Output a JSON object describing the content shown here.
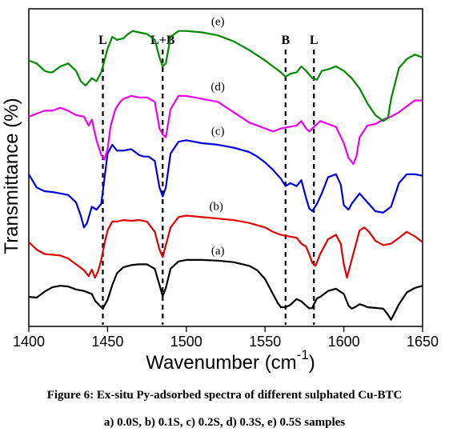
{
  "chart_data": {
    "type": "line",
    "xlabel": "Wavenumber (cm",
    "xlabel_sup": "-1",
    "xlabel_end": ")",
    "ylabel": "Transmittance (%)",
    "xlim": [
      1400,
      1650
    ],
    "xticks": [
      1400,
      1450,
      1500,
      1550,
      1600,
      1650
    ],
    "yticks": [],
    "grid": false,
    "legend": "none",
    "markers": [
      {
        "label": "L",
        "x": 1447
      },
      {
        "label": "L+B",
        "x": 1485
      },
      {
        "label": "B",
        "x": 1563
      },
      {
        "label": "L",
        "x": 1581
      }
    ],
    "series": [
      {
        "tag": "(a)",
        "tag_x": 1520,
        "color": "#000000",
        "x": [
          1400,
          1405,
          1410,
          1415,
          1420,
          1425,
          1430,
          1435,
          1440,
          1442,
          1445,
          1447,
          1450,
          1453,
          1456,
          1460,
          1465,
          1470,
          1475,
          1480,
          1483,
          1485,
          1487,
          1490,
          1495,
          1500,
          1510,
          1520,
          1530,
          1540,
          1545,
          1550,
          1555,
          1558,
          1560,
          1563,
          1566,
          1568,
          1570,
          1573,
          1576,
          1578,
          1580,
          1581,
          1583,
          1585,
          1590,
          1595,
          1600,
          1603,
          1605,
          1607,
          1610,
          1613,
          1615,
          1620,
          1625,
          1628,
          1630,
          1635,
          1640,
          1645,
          1650
        ],
        "y": [
          1.0,
          0.95,
          1.35,
          1.65,
          1.75,
          1.7,
          1.5,
          1.4,
          1.2,
          0.75,
          0.4,
          0.2,
          0.8,
          1.8,
          2.6,
          3.0,
          3.15,
          3.2,
          3.2,
          2.9,
          1.8,
          1.05,
          1.6,
          2.9,
          3.4,
          3.5,
          3.5,
          3.45,
          3.35,
          3.1,
          2.8,
          2.2,
          1.2,
          0.6,
          0.3,
          0.3,
          0.45,
          0.65,
          0.85,
          0.7,
          0.4,
          0.22,
          0.25,
          0.5,
          0.9,
          1.0,
          1.4,
          1.55,
          1.2,
          0.4,
          0.2,
          0.3,
          0.5,
          0.4,
          0.3,
          0.25,
          0.2,
          -0.2,
          -0.55,
          0.5,
          1.3,
          1.6,
          1.75
        ]
      },
      {
        "tag": "(b)",
        "tag_x": 1519,
        "color": "#e00000",
        "x": [
          1400,
          1405,
          1410,
          1415,
          1420,
          1425,
          1430,
          1435,
          1438,
          1440,
          1442,
          1444,
          1446,
          1448,
          1450,
          1453,
          1456,
          1460,
          1465,
          1470,
          1475,
          1480,
          1483,
          1485,
          1487,
          1490,
          1495,
          1500,
          1510,
          1520,
          1530,
          1540,
          1550,
          1555,
          1560,
          1565,
          1570,
          1573,
          1576,
          1578,
          1580,
          1582,
          1585,
          1590,
          1595,
          1598,
          1600,
          1602,
          1605,
          1610,
          1613,
          1616,
          1620,
          1625,
          1630,
          1635,
          1640,
          1645,
          1650
        ],
        "y": [
          4.7,
          4.2,
          3.9,
          3.85,
          3.8,
          3.6,
          3.2,
          2.8,
          2.4,
          2.85,
          2.3,
          2.75,
          3.5,
          4.6,
          5.5,
          6.1,
          6.1,
          6.2,
          6.15,
          6.2,
          6.1,
          5.4,
          4.2,
          3.7,
          4.5,
          5.7,
          6.4,
          6.5,
          6.4,
          6.3,
          6.2,
          6.0,
          5.7,
          5.4,
          5.2,
          5.1,
          5.0,
          4.6,
          4.4,
          3.9,
          3.3,
          3.1,
          3.9,
          4.9,
          5.2,
          4.6,
          3.2,
          2.3,
          3.5,
          5.5,
          5.7,
          5.4,
          4.8,
          4.5,
          4.6,
          5.0,
          5.4,
          5.1,
          4.7
        ]
      },
      {
        "tag": "(c)",
        "tag_x": 1520,
        "color": "#0000dd",
        "x": [
          1400,
          1405,
          1410,
          1415,
          1420,
          1425,
          1430,
          1433,
          1435,
          1437,
          1440,
          1443,
          1446,
          1448,
          1450,
          1453,
          1456,
          1460,
          1465,
          1470,
          1473,
          1476,
          1480,
          1483,
          1485,
          1487,
          1490,
          1495,
          1500,
          1510,
          1520,
          1530,
          1540,
          1545,
          1550,
          1555,
          1560,
          1563,
          1566,
          1570,
          1573,
          1576,
          1578,
          1580,
          1583,
          1586,
          1590,
          1595,
          1598,
          1600,
          1603,
          1605,
          1610,
          1615,
          1620,
          1625,
          1630,
          1635,
          1640,
          1645,
          1650
        ],
        "y": [
          9.3,
          8.4,
          8.15,
          8.1,
          8.0,
          7.9,
          7.4,
          6.5,
          5.7,
          6.0,
          7.1,
          6.9,
          7.3,
          9.0,
          10.7,
          11.3,
          10.9,
          10.9,
          11.0,
          10.6,
          10.5,
          10.5,
          10.2,
          8.4,
          7.8,
          8.4,
          10.7,
          11.5,
          11.6,
          11.4,
          11.3,
          11.1,
          10.8,
          10.5,
          10.1,
          9.6,
          9.0,
          8.5,
          8.7,
          8.5,
          8.9,
          7.7,
          7.0,
          6.8,
          7.3,
          8.0,
          9.1,
          9.3,
          8.6,
          7.2,
          6.9,
          7.3,
          8.0,
          7.4,
          6.8,
          6.7,
          7.1,
          8.7,
          9.3,
          9.3,
          9.2
        ]
      },
      {
        "tag": "(d)",
        "tag_x": 1520,
        "color": "#ee00ee",
        "x": [
          1400,
          1405,
          1410,
          1415,
          1420,
          1425,
          1430,
          1435,
          1438,
          1440,
          1443,
          1446,
          1448,
          1450,
          1452,
          1455,
          1458,
          1460,
          1465,
          1470,
          1475,
          1480,
          1483,
          1485,
          1487,
          1490,
          1495,
          1500,
          1510,
          1520,
          1530,
          1540,
          1550,
          1555,
          1560,
          1565,
          1570,
          1573,
          1576,
          1578,
          1580,
          1585,
          1590,
          1595,
          1600,
          1603,
          1606,
          1608,
          1610,
          1615,
          1620,
          1625,
          1630,
          1635,
          1640,
          1645,
          1650
        ],
        "y": [
          13.2,
          13.4,
          13.6,
          13.6,
          13.8,
          13.6,
          13.3,
          13.2,
          12.6,
          13.0,
          11.6,
          10.6,
          10.3,
          11.0,
          12.6,
          13.7,
          14.2,
          14.4,
          14.6,
          14.5,
          14.5,
          14.2,
          12.4,
          12.0,
          11.8,
          13.7,
          14.6,
          14.6,
          14.4,
          14.2,
          13.5,
          12.8,
          12.4,
          12.2,
          12.4,
          12.5,
          12.6,
          12.9,
          12.4,
          12.2,
          12.4,
          12.9,
          12.7,
          12.5,
          11.4,
          10.4,
          10.0,
          10.5,
          11.8,
          12.6,
          12.7,
          13.0,
          13.2,
          13.5,
          13.9,
          14.3,
          14.3
        ]
      },
      {
        "tag": "(e)",
        "tag_x": 1520,
        "color": "#008800",
        "x": [
          1400,
          1405,
          1410,
          1413,
          1415,
          1420,
          1425,
          1430,
          1433,
          1436,
          1440,
          1443,
          1446,
          1448,
          1450,
          1453,
          1456,
          1460,
          1463,
          1466,
          1470,
          1475,
          1480,
          1483,
          1485,
          1487,
          1490,
          1495,
          1500,
          1510,
          1520,
          1530,
          1540,
          1550,
          1555,
          1560,
          1563,
          1566,
          1570,
          1573,
          1576,
          1580,
          1583,
          1586,
          1590,
          1595,
          1600,
          1605,
          1610,
          1615,
          1620,
          1625,
          1628,
          1630,
          1635,
          1640,
          1645,
          1650
        ],
        "y": [
          17.0,
          16.8,
          16.3,
          16.2,
          16.2,
          16.6,
          16.8,
          16.3,
          15.6,
          15.3,
          15.8,
          15.6,
          16.2,
          17.0,
          17.8,
          18.6,
          18.4,
          18.5,
          18.8,
          19.0,
          18.9,
          18.8,
          18.4,
          17.2,
          16.6,
          16.8,
          18.6,
          19.0,
          19.0,
          18.9,
          18.7,
          18.3,
          17.7,
          17.0,
          16.6,
          16.2,
          15.9,
          16.1,
          16.2,
          16.6,
          16.3,
          15.8,
          15.7,
          16.3,
          16.4,
          16.6,
          16.3,
          15.8,
          15.1,
          14.1,
          13.3,
          12.9,
          13.1,
          14.4,
          16.5,
          17.1,
          17.4,
          17.2
        ]
      }
    ]
  },
  "caption": {
    "line1": "Figure 6: Ex-situ Py-adsorbed spectra of different sulphated Cu-BTC",
    "line2": "a) 0.0S, b) 0.1S, c) 0.2S, d) 0.3S, e) 0.5S samples"
  }
}
